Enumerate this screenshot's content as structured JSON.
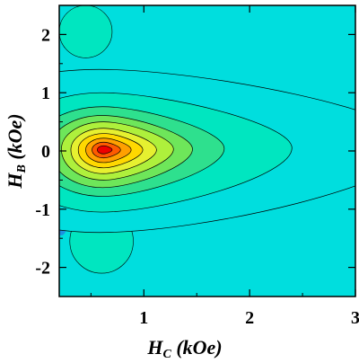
{
  "chart_data": {
    "type": "heatmap",
    "subtype": "filled-contour",
    "xlabel": {
      "main": "H",
      "sub": "C",
      "unit": " (kOe)"
    },
    "ylabel": {
      "main": "H",
      "sub": "B",
      "unit": " (kOe)"
    },
    "xlim": [
      0.2,
      3.0
    ],
    "ylim": [
      -2.5,
      2.5
    ],
    "x_ticks": [
      {
        "value": 1,
        "label": "1"
      },
      {
        "value": 2,
        "label": "2"
      },
      {
        "value": 3,
        "label": "3"
      }
    ],
    "y_ticks": [
      {
        "value": 2,
        "label": "2"
      },
      {
        "value": 1,
        "label": "1"
      },
      {
        "value": 0,
        "label": "0"
      },
      {
        "value": -1,
        "label": "-1"
      },
      {
        "value": -2,
        "label": "-2"
      }
    ],
    "grid": false,
    "colormap": [
      "#00dede",
      "#00e6c0",
      "#2ee08e",
      "#6ee65a",
      "#aef03c",
      "#e6f030",
      "#ffd800",
      "#ffa000",
      "#ff5a00",
      "#ee0000"
    ],
    "background_color": "#00dede",
    "peak": {
      "x": 0.62,
      "y": 0.02
    },
    "contour_levels": [
      {
        "level": 1,
        "center_x": 0.58,
        "center_y": 0.1,
        "extent_right": 3.0,
        "extent_left": 1.6,
        "extent_up": 1.3,
        "extent_down": 1.5
      },
      {
        "level": 2,
        "center_x": 0.6,
        "center_y": 0.05,
        "extent_right": 1.8,
        "extent_left": 0.9,
        "extent_up": 0.95,
        "extent_down": 1.1
      },
      {
        "level": 3,
        "center_x": 0.61,
        "center_y": 0.04,
        "extent_right": 1.15,
        "extent_left": 0.65,
        "extent_up": 0.72,
        "extent_down": 0.82
      },
      {
        "level": 4,
        "center_x": 0.61,
        "center_y": 0.03,
        "extent_right": 0.85,
        "extent_left": 0.5,
        "extent_up": 0.58,
        "extent_down": 0.66
      },
      {
        "level": 5,
        "center_x": 0.62,
        "center_y": 0.03,
        "extent_right": 0.66,
        "extent_left": 0.4,
        "extent_up": 0.47,
        "extent_down": 0.53
      },
      {
        "level": 6,
        "center_x": 0.62,
        "center_y": 0.02,
        "extent_right": 0.5,
        "extent_left": 0.31,
        "extent_up": 0.37,
        "extent_down": 0.41
      },
      {
        "level": 7,
        "center_x": 0.62,
        "center_y": 0.02,
        "extent_right": 0.37,
        "extent_left": 0.24,
        "extent_up": 0.28,
        "extent_down": 0.31
      },
      {
        "level": 8,
        "center_x": 0.62,
        "center_y": 0.02,
        "extent_right": 0.26,
        "extent_left": 0.17,
        "extent_up": 0.2,
        "extent_down": 0.22
      },
      {
        "level": 9,
        "center_x": 0.62,
        "center_y": 0.02,
        "extent_right": 0.16,
        "extent_left": 0.11,
        "extent_up": 0.13,
        "extent_down": 0.14
      },
      {
        "level": 10,
        "center_x": 0.62,
        "center_y": 0.02,
        "extent_right": 0.08,
        "extent_left": 0.06,
        "extent_up": 0.07,
        "extent_down": 0.07
      }
    ],
    "features": [
      {
        "name": "upper-lobe",
        "level": 1,
        "center_x": 0.45,
        "center_y": 2.05,
        "rx": 0.25,
        "ry": 0.45
      },
      {
        "name": "lower-lobe",
        "level": 1,
        "center_x": 0.6,
        "center_y": -1.55,
        "rx": 0.3,
        "ry": 0.55
      },
      {
        "name": "left-edge-low-region",
        "color": "#1e90e0",
        "center_x": 0.22,
        "center_y": -1.2,
        "rx": 0.06,
        "ry": 0.25
      }
    ]
  }
}
